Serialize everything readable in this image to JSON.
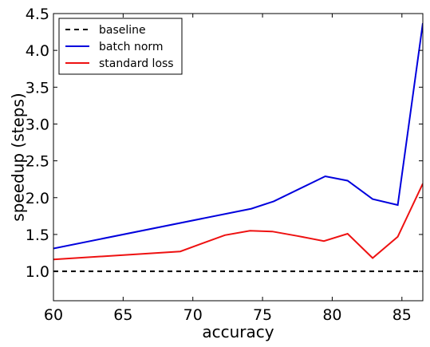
{
  "chart_data": {
    "type": "line",
    "xlabel": "accuracy",
    "ylabel": "speedup (steps)",
    "xlim": [
      60,
      86.5
    ],
    "ylim": [
      0.6,
      4.5
    ],
    "xticks": [
      60,
      65,
      70,
      75,
      80,
      85
    ],
    "yticks": [
      1.0,
      1.5,
      2.0,
      2.5,
      3.0,
      3.5,
      4.0,
      4.5
    ],
    "xtick_labels": [
      "60",
      "65",
      "70",
      "75",
      "80",
      "85"
    ],
    "ytick_labels": [
      "1.0",
      "1.5",
      "2.0",
      "2.5",
      "3.0",
      "3.5",
      "4.0",
      "4.5"
    ],
    "grid": false,
    "legend_position": "top-left",
    "series": [
      {
        "name": "baseline",
        "color": "#000000",
        "style": "dashed",
        "x": [
          60,
          86.5
        ],
        "y": [
          1.0,
          1.0
        ]
      },
      {
        "name": "batch norm",
        "color": "#0000dd",
        "style": "solid",
        "x": [
          60,
          74.2,
          75.8,
          79.5,
          81.1,
          82.9,
          84.7,
          86.5
        ],
        "y": [
          1.31,
          1.85,
          1.95,
          2.29,
          2.23,
          1.98,
          1.9,
          4.37
        ]
      },
      {
        "name": "standard loss",
        "color": "#ee1111",
        "style": "solid",
        "x": [
          60,
          69.1,
          72.3,
          74.1,
          75.7,
          77.5,
          79.4,
          81.1,
          82.9,
          84.7,
          86.5
        ],
        "y": [
          1.16,
          1.27,
          1.49,
          1.55,
          1.54,
          1.48,
          1.41,
          1.51,
          1.18,
          1.47,
          2.19
        ]
      }
    ]
  }
}
